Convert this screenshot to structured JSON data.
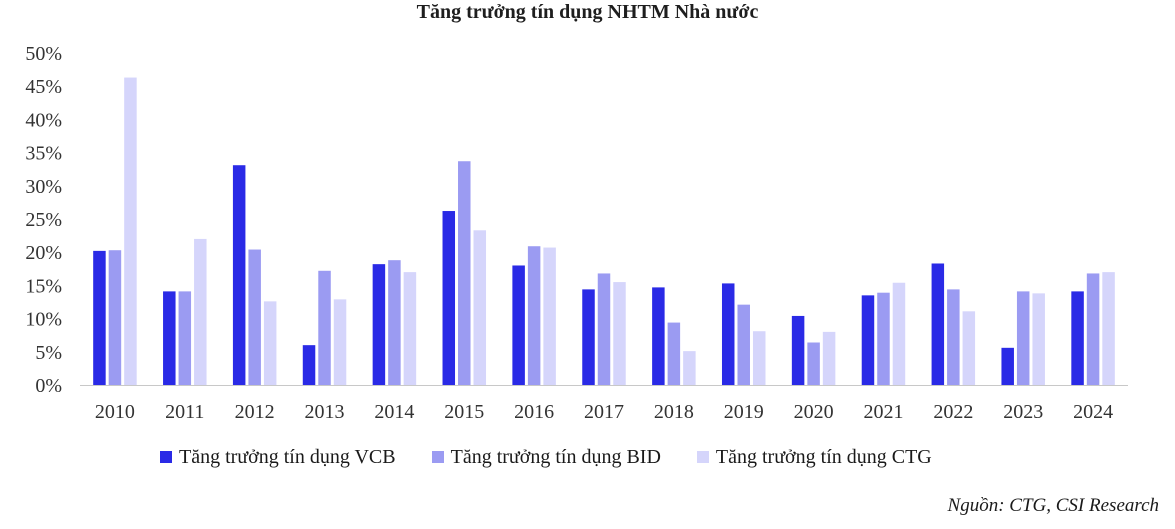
{
  "colors": {
    "vcb": "#2a2ae6",
    "bid": "#9b9bf2",
    "ctg": "#d5d5fb",
    "axis": "#c8c8c8"
  },
  "source": "Nguồn: CTG, CSI Research",
  "chart_data": {
    "type": "bar",
    "title": "Tăng trưởng tín dụng NHTM Nhà nước",
    "xlabel": "",
    "ylabel": "",
    "ylim": [
      0,
      50
    ],
    "yticks": [
      "0%",
      "5%",
      "10%",
      "15%",
      "20%",
      "25%",
      "30%",
      "35%",
      "40%",
      "45%",
      "50%"
    ],
    "grid": false,
    "legend_position": "bottom",
    "categories": [
      "2010",
      "2011",
      "2012",
      "2013",
      "2014",
      "2015",
      "2016",
      "2017",
      "2018",
      "2019",
      "2020",
      "2021",
      "2022",
      "2023",
      "2024"
    ],
    "series": [
      {
        "name": "Tăng trưởng tín dụng VCB",
        "color": "#2a2ae6",
        "values": [
          20.2,
          14.1,
          33.1,
          6.0,
          18.2,
          26.2,
          18.0,
          14.4,
          14.7,
          15.3,
          10.4,
          13.5,
          18.3,
          5.6,
          14.1
        ]
      },
      {
        "name": "Tăng trưởng tín dụng BID",
        "color": "#9b9bf2",
        "values": [
          20.3,
          14.1,
          20.4,
          17.2,
          18.8,
          33.7,
          20.9,
          16.8,
          9.4,
          12.1,
          6.4,
          13.9,
          14.4,
          14.1,
          16.8
        ]
      },
      {
        "name": "Tăng trưởng tín dụng CTG",
        "color": "#d5d5fb",
        "values": [
          46.3,
          22.0,
          12.6,
          12.9,
          17.0,
          23.3,
          20.7,
          15.5,
          5.1,
          8.1,
          8.0,
          15.4,
          11.1,
          13.8,
          17.0
        ]
      }
    ]
  }
}
